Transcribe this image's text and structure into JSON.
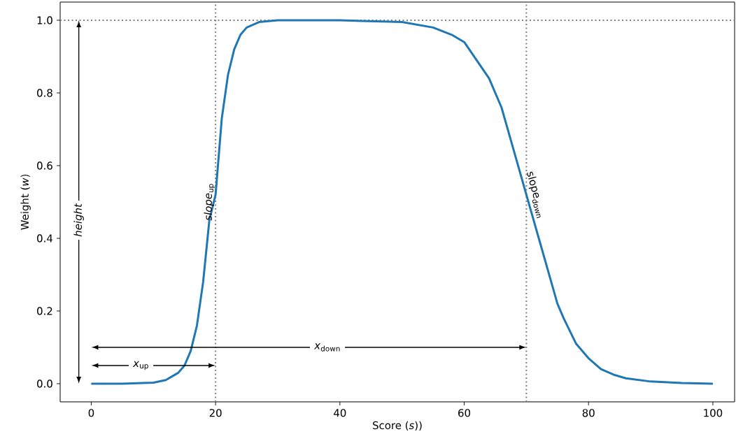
{
  "chart_data": {
    "type": "line",
    "xlabel": "Score (*s*))",
    "ylabel": "Weight (*w*)",
    "x": [
      0,
      5,
      10,
      12,
      14,
      15,
      16,
      17,
      18,
      19,
      20,
      21,
      22,
      23,
      24,
      25,
      27,
      30,
      40,
      50,
      55,
      58,
      60,
      62,
      64,
      65,
      66,
      68,
      70,
      72,
      74,
      75,
      76,
      78,
      80,
      82,
      84,
      86,
      90,
      95,
      100
    ],
    "series": [
      {
        "color": "#1f77b4",
        "values": [
          0,
          0,
          0.003,
          0.01,
          0.03,
          0.05,
          0.09,
          0.16,
          0.28,
          0.45,
          0.52,
          0.73,
          0.85,
          0.92,
          0.96,
          0.98,
          0.995,
          1.0,
          1.0,
          0.995,
          0.98,
          0.96,
          0.94,
          0.89,
          0.84,
          0.8,
          0.76,
          0.64,
          0.52,
          0.4,
          0.28,
          0.22,
          0.18,
          0.11,
          0.07,
          0.04,
          0.025,
          0.015,
          0.006,
          0.002,
          0.0
        ]
      }
    ],
    "xlim": [
      -5,
      103.5
    ],
    "ylim": [
      -0.05,
      1.05
    ],
    "xticks": [
      0,
      20,
      40,
      60,
      80,
      100
    ],
    "yticks": [
      {
        "value": 0,
        "label": "0.0"
      },
      {
        "value": 0.2,
        "label": "0.2"
      },
      {
        "value": 0.4,
        "label": "0.4"
      },
      {
        "value": 0.6,
        "label": "0.6"
      },
      {
        "value": 0.8,
        "label": "0.8"
      },
      {
        "value": 1.0,
        "label": "1.0"
      }
    ],
    "ref_lines": [
      {
        "axis": "x",
        "value": 20,
        "color": "#808080",
        "line_style": "dotted"
      },
      {
        "axis": "x",
        "value": 70,
        "color": "#808080",
        "line_style": "dotted"
      },
      {
        "axis": "y",
        "value": 1.0,
        "color": "#808080",
        "line_style": "dotted"
      }
    ],
    "annotations": [
      "*height*",
      "*x*$_{up}$",
      "*x*$_{down}$",
      "*slope*$_{up}$",
      "slope$_{down}$"
    ],
    "line_style": "solid",
    "marker": "none"
  }
}
